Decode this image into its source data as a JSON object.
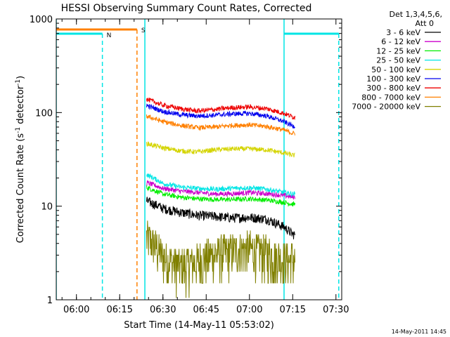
{
  "chart_data": {
    "type": "line",
    "title": "HESSI Observing Summary Count Rates, Corrected",
    "xlabel": "Start Time (14-May-11 05:53:02)",
    "ylabel": "Corrected Count Rate (s⁻¹ detector⁻¹)",
    "ylabel_main": "Corrected Count Rate (s",
    "ylabel_exp1": "-1",
    "ylabel_mid": " detector",
    "ylabel_exp2": "-1",
    "ylabel_end": ")",
    "y_scale": "log",
    "ylim": [
      1,
      1000
    ],
    "xlim": [
      "05:53",
      "07:32"
    ],
    "x_ticks": [
      "06:00",
      "06:15",
      "06:30",
      "06:45",
      "07:00",
      "07:15",
      "07:30"
    ],
    "y_ticks": [
      "1",
      "10",
      "100",
      "1000"
    ],
    "legend_header": [
      "Det 1,3,4,5,6,",
      "Att 0"
    ],
    "legend_position": "right",
    "timestamp": "14-May-2011 14:45",
    "series": [
      {
        "name": "3 - 6 keV",
        "color": "#000000",
        "x": [
          "06:24",
          "06:30",
          "06:36",
          "06:42",
          "06:48",
          "06:54",
          "07:00",
          "07:06",
          "07:12",
          "07:15"
        ],
        "y": [
          11.5,
          9.5,
          8.6,
          8.0,
          7.8,
          7.5,
          7.6,
          7.3,
          6.0,
          5.0
        ]
      },
      {
        "name": "6 - 12 keV",
        "color": "#cc00cc",
        "x": [
          "06:24",
          "06:30",
          "06:36",
          "06:42",
          "06:48",
          "06:54",
          "07:00",
          "07:06",
          "07:12",
          "07:15"
        ],
        "y": [
          18,
          15.5,
          14.5,
          14,
          13.5,
          13.6,
          14,
          13.6,
          13,
          12.5
        ]
      },
      {
        "name": "12 - 25 keV",
        "color": "#00ee00",
        "x": [
          "06:24",
          "06:30",
          "06:36",
          "06:42",
          "06:48",
          "06:54",
          "07:00",
          "07:06",
          "07:12",
          "07:15"
        ],
        "y": [
          16,
          13.5,
          12.5,
          12,
          11.8,
          11.8,
          12,
          11.6,
          11,
          10.5
        ]
      },
      {
        "name": "25 - 50 keV",
        "color": "#00e5e5",
        "x": [
          "06:24",
          "06:30",
          "06:36",
          "06:42",
          "06:48",
          "06:54",
          "07:00",
          "07:06",
          "07:12",
          "07:15"
        ],
        "y": [
          22,
          17.5,
          16,
          15.5,
          15.2,
          15.5,
          15.8,
          15.2,
          14,
          13.5
        ]
      },
      {
        "name": "50 - 100 keV",
        "color": "#d4d400",
        "x": [
          "06:24",
          "06:30",
          "06:36",
          "06:42",
          "06:48",
          "06:54",
          "07:00",
          "07:06",
          "07:12",
          "07:15"
        ],
        "y": [
          47,
          42,
          39,
          38,
          40,
          41,
          41,
          40,
          37,
          35
        ]
      },
      {
        "name": "100 - 300 keV",
        "color": "#0000ee",
        "x": [
          "06:24",
          "06:30",
          "06:36",
          "06:42",
          "06:48",
          "06:54",
          "07:00",
          "07:06",
          "07:12",
          "07:15"
        ],
        "y": [
          120,
          103,
          95,
          92,
          94,
          97,
          98,
          92,
          80,
          72
        ]
      },
      {
        "name": "300 - 800 keV",
        "color": "#ee0000",
        "x": [
          "06:24",
          "06:30",
          "06:36",
          "06:42",
          "06:48",
          "06:54",
          "07:00",
          "07:06",
          "07:12",
          "07:15"
        ],
        "y": [
          140,
          120,
          110,
          104,
          108,
          113,
          115,
          110,
          98,
          90
        ]
      },
      {
        "name": "800 - 7000 keV",
        "color": "#ff8000",
        "x": [
          "06:24",
          "06:30",
          "06:36",
          "06:42",
          "06:48",
          "06:54",
          "07:00",
          "07:06",
          "07:12",
          "07:15"
        ],
        "y": [
          92,
          80,
          73,
          69,
          70,
          73,
          74,
          71,
          65,
          60
        ]
      },
      {
        "name": "7000 - 20000 keV",
        "color": "#808000",
        "x": [
          "06:24",
          "06:30",
          "06:36",
          "06:42",
          "06:48",
          "06:54",
          "07:00",
          "07:06",
          "07:12",
          "07:15"
        ],
        "y": [
          4.5,
          2.8,
          2.2,
          2.5,
          3.0,
          3.2,
          3.4,
          3.0,
          2.6,
          2.6
        ]
      }
    ],
    "annotations": [
      {
        "label": "N",
        "color": "#00e5e5",
        "x": "06:09"
      },
      {
        "label": "S",
        "color": "#ff8000",
        "x": "06:21"
      }
    ]
  }
}
